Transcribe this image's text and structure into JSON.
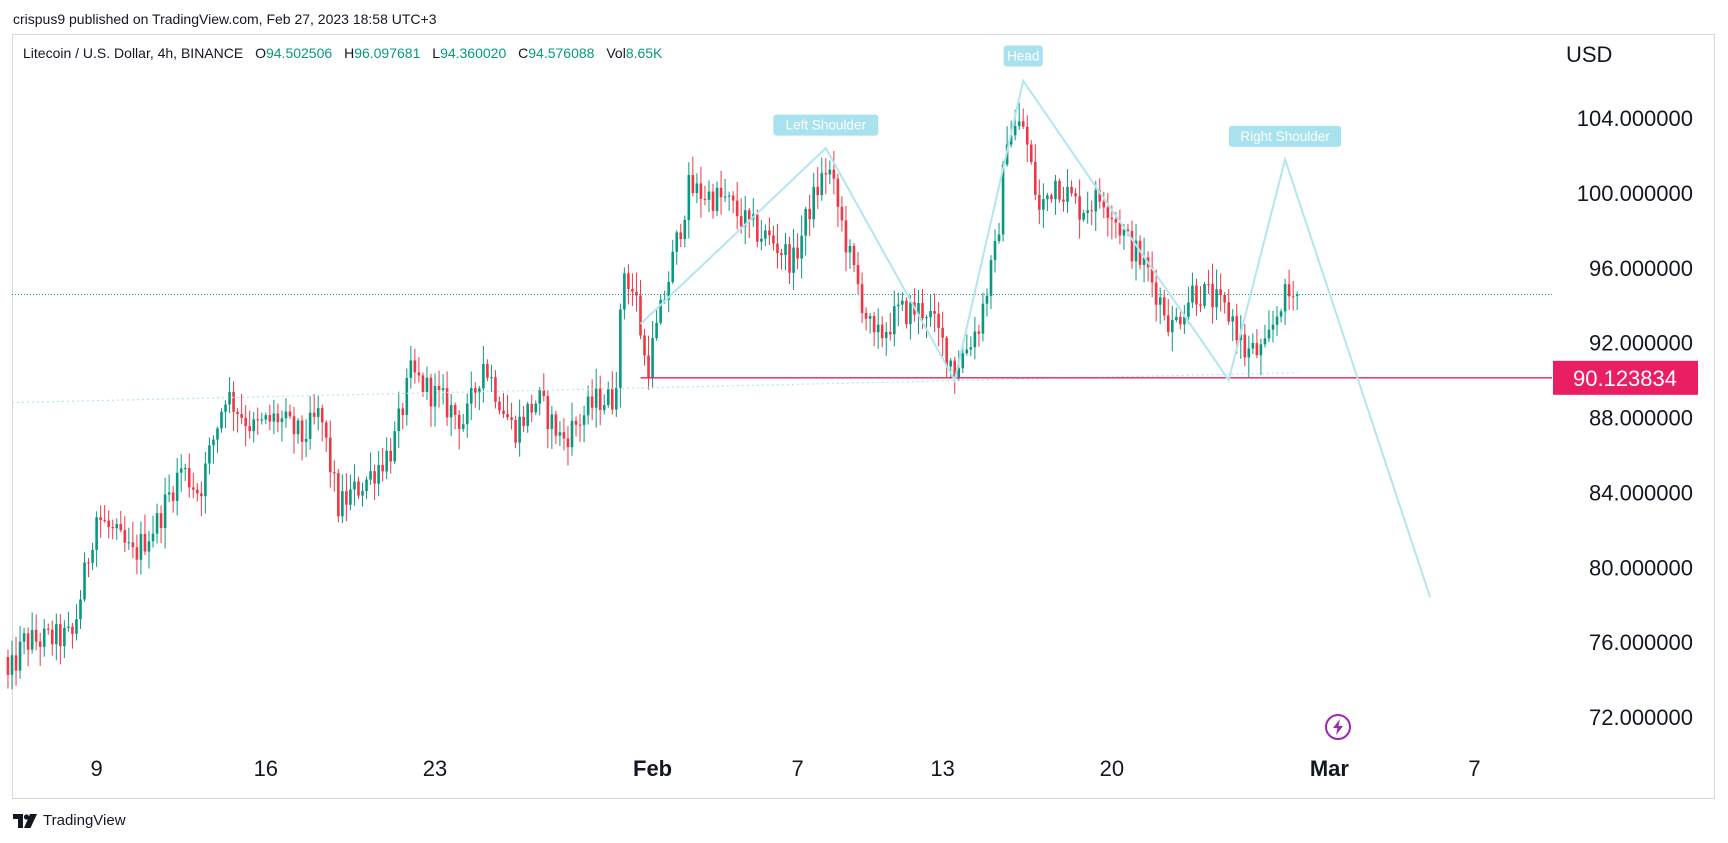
{
  "publisher": "crispus9 published on TradingView.com, Feb 27, 2023 18:58 UTC+3",
  "legend": {
    "symbol": "Litecoin / U.S. Dollar, 4h, BINANCE",
    "open_label": "O",
    "open": "94.502506",
    "high_label": "H",
    "high": "96.097681",
    "low_label": "L",
    "low": "94.360020",
    "close_label": "C",
    "close": "94.576088",
    "vol_label": "Vol",
    "vol": "8.65K"
  },
  "currency": "USD",
  "footer_brand": "TradingView",
  "colors": {
    "up": "#089981",
    "down": "#f23645",
    "pattern": "#b2e6f0",
    "pattern_label": "#a8e2ee",
    "price_line": "#e91e63",
    "last_price_dots": "#089981",
    "border": "#d6d8de",
    "lightning": "#9c27b0"
  },
  "chart_data": {
    "type": "candlestick",
    "symbol": "Litecoin / U.S. Dollar",
    "interval": "4h",
    "exchange": "BINANCE",
    "x_ticks": [
      "9",
      "16",
      "23",
      "Feb",
      "7",
      "13",
      "20",
      "Mar",
      "7"
    ],
    "x_tick_dates": [
      "2023-01-09",
      "2023-01-16",
      "2023-01-23",
      "2023-02-01",
      "2023-02-07",
      "2023-02-13",
      "2023-02-20",
      "2023-03-01",
      "2023-03-07"
    ],
    "y_ticks": [
      "104.000000",
      "100.000000",
      "96.000000",
      "92.000000",
      "88.000000",
      "84.000000",
      "80.000000",
      "76.000000",
      "72.000000"
    ],
    "ylim": [
      70.5,
      108.5
    ],
    "xlim": [
      "2023-01-05T12:00",
      "2023-03-10T06:00"
    ],
    "horizontal_line": {
      "value": 90.123834,
      "label": "90.123834",
      "start": "2023-01-31T12:00"
    },
    "last_price": 94.576088,
    "neckline": [
      {
        "x": "2023-01-05T12:00",
        "y": 88.8
      },
      {
        "x": "2023-02-27T16:00",
        "y": 90.4
      }
    ],
    "pattern": {
      "labels": [
        {
          "text": "Left Shoulder",
          "x": "2023-02-08T04:00",
          "y": 103.6
        },
        {
          "text": "Head",
          "x": "2023-02-16T08:00",
          "y": 107.3
        },
        {
          "text": "Right Shoulder",
          "x": "2023-02-27T04:00",
          "y": 103.0
        }
      ],
      "path": [
        {
          "x": "2023-01-31T12:00",
          "y": 93.0
        },
        {
          "x": "2023-02-08T04:00",
          "y": 102.4
        },
        {
          "x": "2023-02-13T12:00",
          "y": 90.0
        },
        {
          "x": "2023-02-16T08:00",
          "y": 106.0
        },
        {
          "x": "2023-02-24T20:00",
          "y": 90.0
        },
        {
          "x": "2023-02-27T04:00",
          "y": 101.8
        },
        {
          "x": "2023-03-05T04:00",
          "y": 78.4
        }
      ]
    },
    "anchors": [
      {
        "t": "2023-01-06T00:00",
        "p": 76.0
      },
      {
        "t": "2023-01-08T00:00",
        "p": 76.3
      },
      {
        "t": "2023-01-09T00:00",
        "p": 82.8
      },
      {
        "t": "2023-01-10T12:00",
        "p": 80.6
      },
      {
        "t": "2023-01-11T12:00",
        "p": 82.4
      },
      {
        "t": "2023-01-12T12:00",
        "p": 85.3
      },
      {
        "t": "2023-01-13T06:00",
        "p": 84.0
      },
      {
        "t": "2023-01-14T08:00",
        "p": 89.3
      },
      {
        "t": "2023-01-15T12:00",
        "p": 87.4
      },
      {
        "t": "2023-01-16T12:00",
        "p": 88.0
      },
      {
        "t": "2023-01-17T12:00",
        "p": 86.9
      },
      {
        "t": "2023-01-18T06:00",
        "p": 88.2
      },
      {
        "t": "2023-01-19T00:00",
        "p": 83.2
      },
      {
        "t": "2023-01-20T06:00",
        "p": 84.8
      },
      {
        "t": "2023-01-21T06:00",
        "p": 86.4
      },
      {
        "t": "2023-01-22T00:00",
        "p": 90.3
      },
      {
        "t": "2023-01-23T00:00",
        "p": 89.2
      },
      {
        "t": "2023-01-24T06:00",
        "p": 87.7
      },
      {
        "t": "2023-01-25T00:00",
        "p": 91.0
      },
      {
        "t": "2023-01-26T06:00",
        "p": 87.3
      },
      {
        "t": "2023-01-27T06:00",
        "p": 89.0
      },
      {
        "t": "2023-01-28T06:00",
        "p": 86.8
      },
      {
        "t": "2023-01-29T18:00",
        "p": 89.0
      },
      {
        "t": "2023-01-30T10:00",
        "p": 89.0
      },
      {
        "t": "2023-01-30T20:00",
        "p": 95.9
      },
      {
        "t": "2023-01-31T08:00",
        "p": 94.2
      },
      {
        "t": "2023-01-31T18:00",
        "p": 90.4
      },
      {
        "t": "2023-02-01T12:00",
        "p": 94.5
      },
      {
        "t": "2023-02-02T12:00",
        "p": 100.2
      },
      {
        "t": "2023-02-04T00:00",
        "p": 99.6
      },
      {
        "t": "2023-02-05T00:00",
        "p": 98.2
      },
      {
        "t": "2023-02-06T00:00",
        "p": 97.4
      },
      {
        "t": "2023-02-06T20:00",
        "p": 96.3
      },
      {
        "t": "2023-02-07T12:00",
        "p": 99.2
      },
      {
        "t": "2023-02-08T06:00",
        "p": 101.5
      },
      {
        "t": "2023-02-09T04:00",
        "p": 96.5
      },
      {
        "t": "2023-02-10T04:00",
        "p": 92.0
      },
      {
        "t": "2023-02-11T04:00",
        "p": 93.6
      },
      {
        "t": "2023-02-12T08:00",
        "p": 93.8
      },
      {
        "t": "2023-02-13T12:00",
        "p": 90.6
      },
      {
        "t": "2023-02-14T12:00",
        "p": 93.0
      },
      {
        "t": "2023-02-15T06:00",
        "p": 97.2
      },
      {
        "t": "2023-02-15T16:00",
        "p": 103.3
      },
      {
        "t": "2023-02-16T08:00",
        "p": 103.6
      },
      {
        "t": "2023-02-17T00:00",
        "p": 99.0
      },
      {
        "t": "2023-02-17T16:00",
        "p": 100.7
      },
      {
        "t": "2023-02-18T16:00",
        "p": 99.2
      },
      {
        "t": "2023-02-19T16:00",
        "p": 99.8
      },
      {
        "t": "2023-02-20T16:00",
        "p": 97.4
      },
      {
        "t": "2023-02-21T12:00",
        "p": 95.8
      },
      {
        "t": "2023-02-22T12:00",
        "p": 92.8
      },
      {
        "t": "2023-02-23T08:00",
        "p": 94.8
      },
      {
        "t": "2023-02-24T00:00",
        "p": 94.5
      },
      {
        "t": "2023-02-25T00:00",
        "p": 93.3
      },
      {
        "t": "2023-02-25T12:00",
        "p": 91.5
      },
      {
        "t": "2023-02-26T08:00",
        "p": 91.5
      },
      {
        "t": "2023-02-27T00:00",
        "p": 94.3
      },
      {
        "t": "2023-02-27T16:00",
        "p": 94.58
      }
    ]
  }
}
